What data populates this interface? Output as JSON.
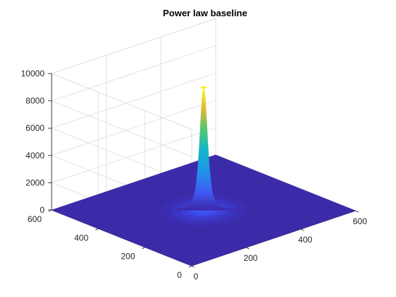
{
  "chart_data": {
    "type": "surface",
    "title": "Power law baseline",
    "xlabel": "",
    "ylabel": "",
    "zlabel": "",
    "xlim": [
      0,
      600
    ],
    "ylim": [
      0,
      600
    ],
    "zlim": [
      0,
      10000
    ],
    "x_ticks": [
      "0",
      "200",
      "400",
      "600"
    ],
    "y_ticks": [
      "0",
      "200",
      "400",
      "600"
    ],
    "z_ticks": [
      "0",
      "2000",
      "4000",
      "6000",
      "8000",
      "10000"
    ],
    "grid": true,
    "colormap": "parula",
    "peak": {
      "x": 300,
      "y": 300,
      "z": 9000
    },
    "profile": [
      {
        "r": 0,
        "z": 9000
      },
      {
        "r": 5,
        "z": 8600
      },
      {
        "r": 10,
        "z": 7000
      },
      {
        "r": 15,
        "z": 5000
      },
      {
        "r": 20,
        "z": 3300
      },
      {
        "r": 25,
        "z": 2200
      },
      {
        "r": 30,
        "z": 1400
      },
      {
        "r": 40,
        "z": 700
      },
      {
        "r": 60,
        "z": 250
      },
      {
        "r": 100,
        "z": 80
      },
      {
        "r": 200,
        "z": 15
      },
      {
        "r": 300,
        "z": 5
      }
    ]
  }
}
